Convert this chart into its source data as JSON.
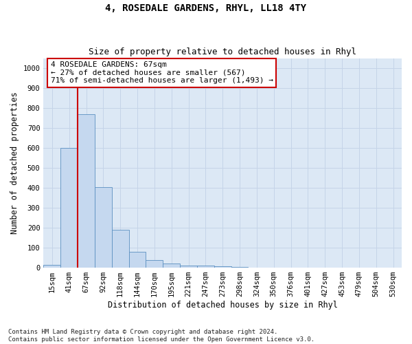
{
  "title": "4, ROSEDALE GARDENS, RHYL, LL18 4TY",
  "subtitle": "Size of property relative to detached houses in Rhyl",
  "xlabel": "Distribution of detached houses by size in Rhyl",
  "ylabel": "Number of detached properties",
  "categories": [
    "15sqm",
    "41sqm",
    "67sqm",
    "92sqm",
    "118sqm",
    "144sqm",
    "170sqm",
    "195sqm",
    "221sqm",
    "247sqm",
    "273sqm",
    "298sqm",
    "324sqm",
    "350sqm",
    "376sqm",
    "401sqm",
    "427sqm",
    "453sqm",
    "479sqm",
    "504sqm",
    "530sqm"
  ],
  "bar_values": [
    15,
    600,
    770,
    405,
    190,
    80,
    38,
    20,
    12,
    12,
    8,
    5,
    0,
    0,
    0,
    0,
    0,
    0,
    0,
    0,
    0
  ],
  "bar_color": "#c5d8ef",
  "bar_edge_color": "#5a8fc0",
  "property_index": 2,
  "vline_color": "#cc0000",
  "annotation_text": "4 ROSEDALE GARDENS: 67sqm\n← 27% of detached houses are smaller (567)\n71% of semi-detached houses are larger (1,493) →",
  "annotation_box_color": "#cc0000",
  "annotation_fill": "#ffffff",
  "ylim": [
    0,
    1050
  ],
  "yticks": [
    0,
    100,
    200,
    300,
    400,
    500,
    600,
    700,
    800,
    900,
    1000
  ],
  "grid_color": "#c5d4e8",
  "background_color": "#dce8f5",
  "footer": "Contains HM Land Registry data © Crown copyright and database right 2024.\nContains public sector information licensed under the Open Government Licence v3.0.",
  "title_fontsize": 10,
  "subtitle_fontsize": 9,
  "xlabel_fontsize": 8.5,
  "ylabel_fontsize": 8.5,
  "tick_fontsize": 7.5,
  "footer_fontsize": 6.5,
  "ann_fontsize": 8
}
